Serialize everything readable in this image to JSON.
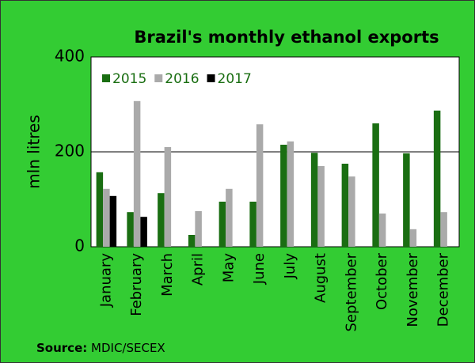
{
  "chart_data": {
    "type": "bar",
    "title": "Brazil's monthly ethanol exports",
    "y_label": "mln litres",
    "source_label": "Source:",
    "source": "MDIC/SECEX",
    "categories": [
      "January",
      "February",
      "March",
      "April",
      "May",
      "June",
      "July",
      "August",
      "September",
      "October",
      "November",
      "December"
    ],
    "series": [
      {
        "name": "2015",
        "color": "#1a6e12",
        "values": [
          157,
          73,
          113,
          25,
          95,
          95,
          215,
          198,
          175,
          260,
          197,
          287
        ]
      },
      {
        "name": "2016",
        "color": "#aaaaaa",
        "values": [
          122,
          307,
          210,
          75,
          122,
          258,
          222,
          170,
          148,
          70,
          37,
          73
        ]
      },
      {
        "name": "2017",
        "color": "#000000",
        "values": [
          107,
          63,
          null,
          null,
          null,
          null,
          null,
          null,
          null,
          null,
          null,
          null
        ]
      }
    ],
    "ylim": [
      0,
      400
    ],
    "yticks": [
      0,
      200,
      400
    ],
    "grid": true,
    "legend": "top-left"
  }
}
